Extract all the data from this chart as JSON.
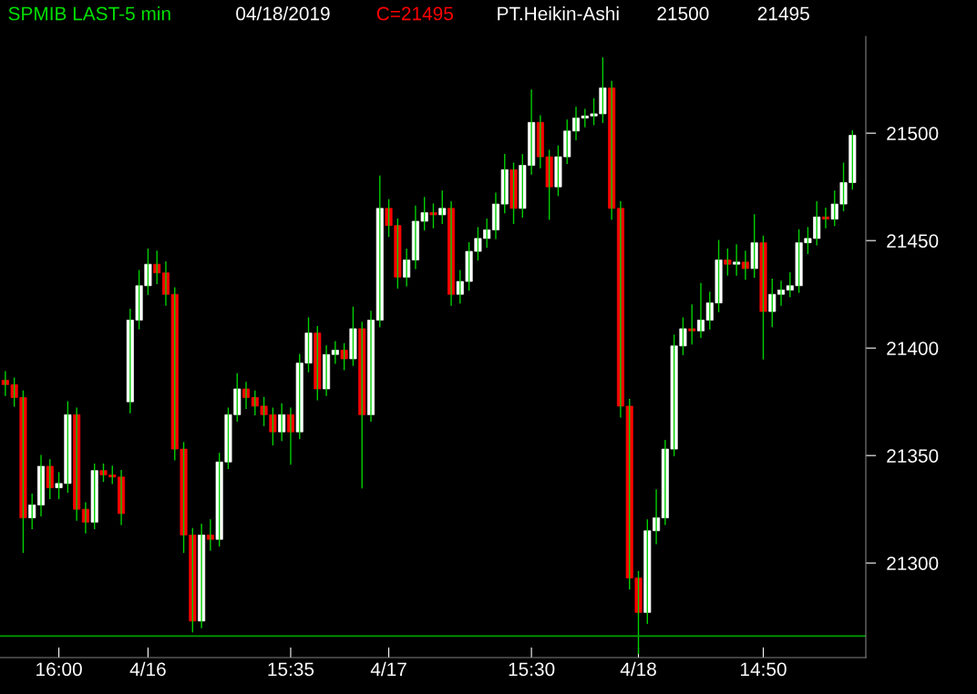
{
  "chart_data": {
    "type": "candlestick",
    "title": "SPMIB LAST-5 min",
    "subtitle": "04/18/2019",
    "annotations": [
      "C=21495",
      "PT.Heikin-Ashi",
      "21500",
      "21495"
    ],
    "categories": [
      null,
      null,
      null,
      null,
      null,
      null,
      "16:00",
      null,
      null,
      null,
      null,
      null,
      null,
      null,
      null,
      null,
      "4/16",
      null,
      null,
      null,
      null,
      null,
      null,
      null,
      null,
      null,
      null,
      null,
      null,
      null,
      null,
      null,
      "15:35",
      null,
      null,
      null,
      null,
      null,
      null,
      null,
      null,
      null,
      null,
      "4/17",
      null,
      null,
      null,
      null,
      null,
      null,
      null,
      null,
      null,
      null,
      null,
      null,
      null,
      null,
      null,
      "15:30",
      null,
      null,
      null,
      null,
      null,
      null,
      null,
      null,
      null,
      null,
      null,
      "4/18",
      null,
      null,
      null,
      null,
      null,
      null,
      null,
      null,
      null,
      null,
      null,
      null,
      null,
      "14:50",
      null,
      null,
      null,
      null,
      null,
      null,
      null,
      null,
      null,
      null
    ],
    "ohlc": [
      [
        21385,
        21389,
        21378,
        21383
      ],
      [
        21383,
        21386,
        21373,
        21377
      ],
      [
        21377,
        21380,
        21305,
        21321
      ],
      [
        21321,
        21332,
        21316,
        21327
      ],
      [
        21327,
        21350,
        21322,
        21345
      ],
      [
        21345,
        21348,
        21330,
        21335
      ],
      [
        21335,
        21342,
        21330,
        21337
      ],
      [
        21337,
        21375,
        21333,
        21369
      ],
      [
        21369,
        21372,
        21320,
        21325
      ],
      [
        21325,
        21328,
        21314,
        21319
      ],
      [
        21319,
        21346,
        21316,
        21343
      ],
      [
        21343,
        21346,
        21338,
        21341
      ],
      [
        21341,
        21345,
        21337,
        21340
      ],
      [
        21340,
        21343,
        21318,
        21323
      ],
      [
        21375,
        21418,
        21370,
        21413
      ],
      [
        21413,
        21436,
        21409,
        21429
      ],
      [
        21429,
        21446,
        21425,
        21439
      ],
      [
        21439,
        21445,
        21430,
        21435
      ],
      [
        21435,
        21440,
        21420,
        21425
      ],
      [
        21425,
        21428,
        21348,
        21353
      ],
      [
        21353,
        21356,
        21305,
        21313
      ],
      [
        21313,
        21316,
        21268,
        21273
      ],
      [
        21273,
        21318,
        21270,
        21313
      ],
      [
        21313,
        21320,
        21306,
        21311
      ],
      [
        21311,
        21351,
        21308,
        21347
      ],
      [
        21347,
        21372,
        21344,
        21369
      ],
      [
        21369,
        21388,
        21366,
        21381
      ],
      [
        21381,
        21384,
        21372,
        21377
      ],
      [
        21377,
        21380,
        21369,
        21373
      ],
      [
        21373,
        21377,
        21364,
        21369
      ],
      [
        21369,
        21372,
        21355,
        21361
      ],
      [
        21361,
        21374,
        21357,
        21369
      ],
      [
        21369,
        21372,
        21346,
        21361
      ],
      [
        21361,
        21397,
        21358,
        21393
      ],
      [
        21393,
        21414,
        21389,
        21407
      ],
      [
        21407,
        21410,
        21376,
        21381
      ],
      [
        21381,
        21401,
        21378,
        21397
      ],
      [
        21397,
        21403,
        21393,
        21399
      ],
      [
        21399,
        21402,
        21390,
        21395
      ],
      [
        21395,
        21419,
        21392,
        21409
      ],
      [
        21409,
        21412,
        21335,
        21369
      ],
      [
        21369,
        21417,
        21366,
        21413
      ],
      [
        21413,
        21480,
        21410,
        21465
      ],
      [
        21465,
        21469,
        21452,
        21457
      ],
      [
        21457,
        21460,
        21428,
        21433
      ],
      [
        21433,
        21446,
        21429,
        21441
      ],
      [
        21441,
        21466,
        21437,
        21459
      ],
      [
        21459,
        21470,
        21455,
        21463
      ],
      [
        21463,
        21467,
        21456,
        21462
      ],
      [
        21462,
        21473,
        21458,
        21465
      ],
      [
        21465,
        21468,
        21420,
        21425
      ],
      [
        21425,
        21436,
        21421,
        21431
      ],
      [
        21431,
        21449,
        21427,
        21445
      ],
      [
        21445,
        21456,
        21441,
        21451
      ],
      [
        21451,
        21460,
        21447,
        21455
      ],
      [
        21455,
        21472,
        21451,
        21467
      ],
      [
        21467,
        21490,
        21463,
        21483
      ],
      [
        21483,
        21486,
        21458,
        21465
      ],
      [
        21465,
        21490,
        21461,
        21485
      ],
      [
        21485,
        21520,
        21481,
        21505
      ],
      [
        21505,
        21508,
        21484,
        21489
      ],
      [
        21489,
        21492,
        21460,
        21475
      ],
      [
        21475,
        21494,
        21471,
        21489
      ],
      [
        21489,
        21506,
        21486,
        21501
      ],
      [
        21501,
        21512,
        21497,
        21507
      ],
      [
        21507,
        21511,
        21503,
        21508
      ],
      [
        21508,
        21516,
        21504,
        21509
      ],
      [
        21509,
        21535,
        21505,
        21521
      ],
      [
        21521,
        21524,
        21460,
        21465
      ],
      [
        21465,
        21468,
        21368,
        21373
      ],
      [
        21373,
        21376,
        21288,
        21293
      ],
      [
        21293,
        21296,
        21258,
        21277
      ],
      [
        21277,
        21320,
        21272,
        21315
      ],
      [
        21315,
        21334,
        21309,
        21321
      ],
      [
        21321,
        21357,
        21318,
        21353
      ],
      [
        21353,
        21406,
        21350,
        21401
      ],
      [
        21401,
        21414,
        21397,
        21409
      ],
      [
        21409,
        21420,
        21402,
        21408
      ],
      [
        21408,
        21430,
        21405,
        21413
      ],
      [
        21413,
        21426,
        21409,
        21421
      ],
      [
        21421,
        21450,
        21417,
        21441
      ],
      [
        21441,
        21446,
        21434,
        21439
      ],
      [
        21439,
        21448,
        21434,
        21440
      ],
      [
        21440,
        21445,
        21432,
        21437
      ],
      [
        21437,
        21462,
        21433,
        21449
      ],
      [
        21449,
        21452,
        21395,
        21417
      ],
      [
        21417,
        21432,
        21410,
        21425
      ],
      [
        21425,
        21431,
        21420,
        21427
      ],
      [
        21427,
        21435,
        21424,
        21429
      ],
      [
        21429,
        21455,
        21426,
        21449
      ],
      [
        21449,
        21456,
        21444,
        21451
      ],
      [
        21451,
        21468,
        21448,
        21461
      ],
      [
        21461,
        21465,
        21456,
        21460
      ],
      [
        21460,
        21473,
        21457,
        21467
      ],
      [
        21467,
        21486,
        21464,
        21477
      ],
      [
        21477,
        21501,
        21474,
        21499
      ]
    ],
    "colors": [
      "#ff0000",
      "#ff0000",
      "#ff0000",
      "#ffffff",
      "#ffffff",
      "#ff0000",
      "#ffffff",
      "#ffffff",
      "#ff0000",
      "#ff0000",
      "#ffffff",
      "#ff0000",
      "#ff0000",
      "#ff0000",
      "#ffffff",
      "#ffffff",
      "#ffffff",
      "#ff0000",
      "#ff0000",
      "#ff0000",
      "#ff0000",
      "#ff0000",
      "#ffffff",
      "#ff0000",
      "#ffffff",
      "#ffffff",
      "#ffffff",
      "#ff0000",
      "#ff0000",
      "#ff0000",
      "#ff0000",
      "#ffffff",
      "#ff0000",
      "#ffffff",
      "#ffffff",
      "#ff0000",
      "#ffffff",
      "#ffffff",
      "#ff0000",
      "#ffffff",
      "#ff0000",
      "#ffffff",
      "#ffffff",
      "#ff0000",
      "#ff0000",
      "#ffffff",
      "#ffffff",
      "#ffffff",
      "#ff0000",
      "#ffffff",
      "#ff0000",
      "#ffffff",
      "#ffffff",
      "#ffffff",
      "#ffffff",
      "#ffffff",
      "#ffffff",
      "#ff0000",
      "#ffffff",
      "#ffffff",
      "#ff0000",
      "#ff0000",
      "#ffffff",
      "#ffffff",
      "#ffffff",
      "#ffffff",
      "#ffffff",
      "#ffffff",
      "#ff0000",
      "#ff0000",
      "#ff0000",
      "#ff0000",
      "#ffffff",
      "#ffffff",
      "#ffffff",
      "#ffffff",
      "#ffffff",
      "#ff0000",
      "#ffffff",
      "#ffffff",
      "#ffffff",
      "#ff0000",
      "#ffffff",
      "#ff0000",
      "#ffffff",
      "#ff0000",
      "#ffffff",
      "#ffffff",
      "#ffffff",
      "#ffffff",
      "#ffffff",
      "#ffffff",
      "#ff0000",
      "#ffffff",
      "#ffffff",
      "#ffffff"
    ],
    "ylim": [
      21256,
      21545
    ],
    "yticks": [
      21300,
      21350,
      21400,
      21450,
      21500
    ],
    "ref_lines": [
      {
        "axis": "y",
        "value": 21266,
        "color": "#00a000"
      }
    ],
    "grid": false,
    "legend": false
  }
}
